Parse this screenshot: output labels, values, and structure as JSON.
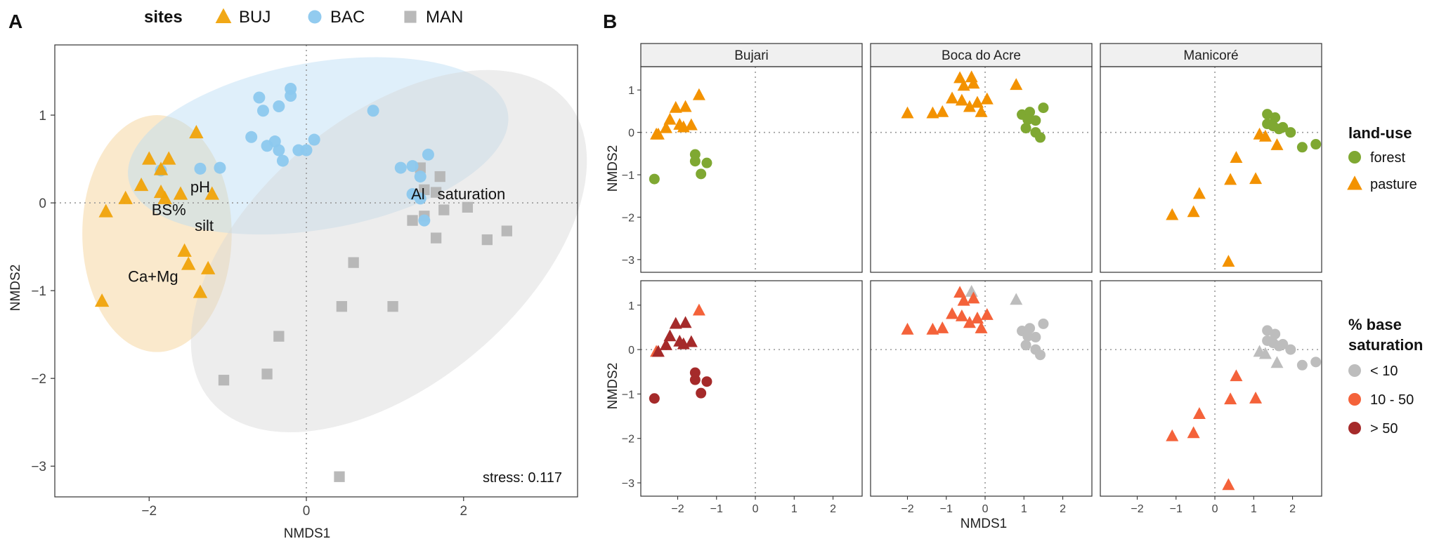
{
  "figure": {
    "panel_a_label": "A",
    "panel_b_label": "B"
  },
  "chart_data": [
    {
      "type": "scatter",
      "id": "panel-a",
      "title": "",
      "xlabel": "NMDS1",
      "ylabel": "NMDS2",
      "xlim": [
        -3.2,
        3.45
      ],
      "ylim": [
        -3.35,
        1.8
      ],
      "xticks": [
        -2,
        0,
        2
      ],
      "yticks": [
        -3,
        -2,
        -1,
        0,
        1
      ],
      "reference_lines": {
        "x": 0,
        "y": 0
      },
      "annotation_stress": "stress: 0.117",
      "legend": {
        "title": "sites",
        "placement": "top",
        "entries": [
          {
            "key": "BUJ",
            "label": "BUJ",
            "shape": "triangle",
            "color": "#f0a30a"
          },
          {
            "key": "BAC",
            "label": "BAC",
            "shape": "circle",
            "color": "#8cc8ee"
          },
          {
            "key": "MAN",
            "label": "MAN",
            "shape": "square",
            "color": "#b5b5b5"
          }
        ]
      },
      "ellipses": [
        {
          "group": "BUJ",
          "cx": -1.9,
          "cy": -0.35,
          "rx": 0.95,
          "ry": 1.35,
          "angle_deg": 0,
          "color": "#f5cf8f"
        },
        {
          "group": "BAC",
          "cx": 0.15,
          "cy": 0.65,
          "rx": 2.45,
          "ry": 0.95,
          "angle_deg": -10,
          "color": "#b7dbf3"
        },
        {
          "group": "MAN",
          "cx": 1.05,
          "cy": -0.55,
          "rx": 1.7,
          "ry": 2.65,
          "angle_deg": 50,
          "color": "#d6d6d6"
        }
      ],
      "vector_labels": [
        {
          "text": "pH",
          "x": -1.35,
          "y": 0.12
        },
        {
          "text": "BS%",
          "x": -1.75,
          "y": -0.14
        },
        {
          "text": "silt",
          "x": -1.3,
          "y": -0.32
        },
        {
          "text": "Ca+Mg",
          "x": -1.95,
          "y": -0.9
        },
        {
          "text": "Al",
          "x": 1.42,
          "y": 0.04
        },
        {
          "text": "saturation",
          "x": 2.1,
          "y": 0.04
        }
      ],
      "series": [
        {
          "name": "BUJ",
          "shape": "triangle",
          "color": "#f0a30a",
          "x": [
            -2.55,
            -2.3,
            -2.1,
            -2.0,
            -1.85,
            -1.8,
            -1.75,
            -1.6,
            -1.4,
            -1.55,
            -1.5,
            -1.35,
            -1.25,
            -1.2,
            -2.6,
            -1.85
          ],
          "y": [
            -0.1,
            0.05,
            0.2,
            0.5,
            0.12,
            0.05,
            0.5,
            0.1,
            0.8,
            -0.55,
            -0.7,
            -1.02,
            -0.75,
            0.1,
            -1.12,
            0.38
          ]
        },
        {
          "name": "BAC",
          "shape": "circle",
          "color": "#8cc8ee",
          "x": [
            -0.6,
            -0.35,
            -0.55,
            -0.4,
            -0.2,
            -0.2,
            -0.1,
            -0.7,
            -0.5,
            -0.35,
            -0.3,
            0.0,
            0.1,
            0.85,
            1.2,
            1.35,
            1.45,
            1.55,
            1.35,
            1.45,
            1.5,
            -1.85,
            -1.35,
            -1.1
          ],
          "y": [
            1.2,
            1.1,
            1.05,
            0.7,
            1.3,
            1.22,
            0.6,
            0.75,
            0.65,
            0.6,
            0.48,
            0.6,
            0.72,
            1.05,
            0.4,
            0.42,
            0.3,
            0.55,
            0.1,
            0.05,
            -0.2,
            0.37,
            0.39,
            0.4
          ]
        },
        {
          "name": "MAN",
          "shape": "square",
          "color": "#b5b5b5",
          "x": [
            1.45,
            1.7,
            1.5,
            1.65,
            1.75,
            2.05,
            1.35,
            1.5,
            1.65,
            2.3,
            2.55,
            0.6,
            0.45,
            1.1,
            -0.35,
            -0.5,
            -1.05,
            0.42
          ],
          "y": [
            0.4,
            0.3,
            0.15,
            0.12,
            -0.08,
            -0.05,
            -0.2,
            -0.15,
            -0.4,
            -0.42,
            -0.32,
            -0.68,
            -1.18,
            -1.18,
            -1.52,
            -1.95,
            -2.02,
            -3.12
          ]
        }
      ]
    },
    {
      "type": "scatter",
      "id": "panel-b",
      "xlabel": "NMDS1",
      "ylabel": "NMDS2",
      "xlim": [
        -2.95,
        2.75
      ],
      "ylim": [
        -3.3,
        1.55
      ],
      "xticks": [
        -2,
        -1,
        0,
        1,
        2
      ],
      "yticks": [
        -3,
        -2,
        -1,
        0,
        1
      ],
      "facets": [
        "Bujari",
        "Boca do Acre",
        "Manicoré"
      ],
      "rows": [
        {
          "name": "land-use",
          "legend_title": "land-use",
          "categories": [
            {
              "key": "forest",
              "label": "forest",
              "shape": "circle",
              "color": "#7fa832"
            },
            {
              "key": "pasture",
              "label": "pasture",
              "shape": "triangle",
              "color": "#f39200"
            }
          ]
        },
        {
          "name": "base-saturation",
          "legend_title_lines": [
            "% base",
            "saturation"
          ],
          "categories": [
            {
              "key": "low",
              "label": "< 10",
              "shape": "circle",
              "color": "#bdbdbd"
            },
            {
              "key": "mid",
              "label": "10 - 50",
              "shape": "circle",
              "color": "#f4623a"
            },
            {
              "key": "high",
              "label": "> 50",
              "shape": "circle",
              "color": "#a52a2a"
            }
          ]
        }
      ],
      "points": {
        "Bujari": [
          {
            "x": -2.55,
            "y": -0.05,
            "land": "pasture",
            "bs": "mid"
          },
          {
            "x": -2.5,
            "y": -0.05,
            "land": "pasture",
            "bs": "high"
          },
          {
            "x": -2.3,
            "y": 0.1,
            "land": "pasture",
            "bs": "high"
          },
          {
            "x": -2.2,
            "y": 0.3,
            "land": "pasture",
            "bs": "high"
          },
          {
            "x": -2.05,
            "y": 0.58,
            "land": "pasture",
            "bs": "high"
          },
          {
            "x": -1.95,
            "y": 0.18,
            "land": "pasture",
            "bs": "high"
          },
          {
            "x": -1.85,
            "y": 0.12,
            "land": "pasture",
            "bs": "high"
          },
          {
            "x": -1.8,
            "y": 0.6,
            "land": "pasture",
            "bs": "high"
          },
          {
            "x": -1.65,
            "y": 0.17,
            "land": "pasture",
            "bs": "high"
          },
          {
            "x": -1.45,
            "y": 0.88,
            "land": "pasture",
            "bs": "mid"
          },
          {
            "x": -1.55,
            "y": -0.52,
            "land": "forest",
            "bs": "high"
          },
          {
            "x": -1.55,
            "y": -0.68,
            "land": "forest",
            "bs": "high"
          },
          {
            "x": -1.25,
            "y": -0.72,
            "land": "forest",
            "bs": "high"
          },
          {
            "x": -1.4,
            "y": -0.98,
            "land": "forest",
            "bs": "high"
          },
          {
            "x": -2.6,
            "y": -1.1,
            "land": "forest",
            "bs": "high"
          }
        ],
        "Boca do Acre": [
          {
            "x": -0.65,
            "y": 1.28,
            "land": "pasture",
            "bs": "mid"
          },
          {
            "x": -0.35,
            "y": 1.3,
            "land": "pasture",
            "bs": "low"
          },
          {
            "x": -0.55,
            "y": 1.1,
            "land": "pasture",
            "bs": "mid"
          },
          {
            "x": -0.3,
            "y": 1.15,
            "land": "pasture",
            "bs": "mid"
          },
          {
            "x": -0.85,
            "y": 0.8,
            "land": "pasture",
            "bs": "mid"
          },
          {
            "x": -0.6,
            "y": 0.75,
            "land": "pasture",
            "bs": "mid"
          },
          {
            "x": -0.4,
            "y": 0.6,
            "land": "pasture",
            "bs": "mid"
          },
          {
            "x": -0.2,
            "y": 0.7,
            "land": "pasture",
            "bs": "mid"
          },
          {
            "x": 0.05,
            "y": 0.78,
            "land": "pasture",
            "bs": "mid"
          },
          {
            "x": -0.1,
            "y": 0.48,
            "land": "pasture",
            "bs": "mid"
          },
          {
            "x": -1.35,
            "y": 0.45,
            "land": "pasture",
            "bs": "mid"
          },
          {
            "x": -1.1,
            "y": 0.48,
            "land": "pasture",
            "bs": "mid"
          },
          {
            "x": -2.0,
            "y": 0.45,
            "land": "pasture",
            "bs": "mid"
          },
          {
            "x": 0.8,
            "y": 1.12,
            "land": "pasture",
            "bs": "low"
          },
          {
            "x": 0.95,
            "y": 0.42,
            "land": "forest",
            "bs": "low"
          },
          {
            "x": 1.15,
            "y": 0.48,
            "land": "forest",
            "bs": "low"
          },
          {
            "x": 1.5,
            "y": 0.58,
            "land": "forest",
            "bs": "low"
          },
          {
            "x": 1.1,
            "y": 0.3,
            "land": "forest",
            "bs": "low"
          },
          {
            "x": 1.3,
            "y": 0.28,
            "land": "forest",
            "bs": "low"
          },
          {
            "x": 1.05,
            "y": 0.1,
            "land": "forest",
            "bs": "low"
          },
          {
            "x": 1.3,
            "y": 0.0,
            "land": "forest",
            "bs": "low"
          },
          {
            "x": 1.42,
            "y": -0.12,
            "land": "forest",
            "bs": "low"
          }
        ],
        "Manicoré": [
          {
            "x": 1.35,
            "y": 0.43,
            "land": "forest",
            "bs": "low"
          },
          {
            "x": 1.55,
            "y": 0.35,
            "land": "forest",
            "bs": "low"
          },
          {
            "x": 1.35,
            "y": 0.2,
            "land": "forest",
            "bs": "low"
          },
          {
            "x": 1.5,
            "y": 0.15,
            "land": "forest",
            "bs": "low"
          },
          {
            "x": 1.65,
            "y": 0.08,
            "land": "forest",
            "bs": "low"
          },
          {
            "x": 1.75,
            "y": 0.12,
            "land": "forest",
            "bs": "low"
          },
          {
            "x": 1.95,
            "y": 0.0,
            "land": "forest",
            "bs": "low"
          },
          {
            "x": 2.25,
            "y": -0.35,
            "land": "forest",
            "bs": "low"
          },
          {
            "x": 2.6,
            "y": -0.28,
            "land": "forest",
            "bs": "low"
          },
          {
            "x": 1.15,
            "y": -0.05,
            "land": "pasture",
            "bs": "low"
          },
          {
            "x": 1.3,
            "y": -0.1,
            "land": "pasture",
            "bs": "low"
          },
          {
            "x": 1.6,
            "y": -0.3,
            "land": "pasture",
            "bs": "low"
          },
          {
            "x": 0.55,
            "y": -0.6,
            "land": "pasture",
            "bs": "mid"
          },
          {
            "x": 0.4,
            "y": -1.12,
            "land": "pasture",
            "bs": "mid"
          },
          {
            "x": 1.05,
            "y": -1.1,
            "land": "pasture",
            "bs": "mid"
          },
          {
            "x": -0.4,
            "y": -1.45,
            "land": "pasture",
            "bs": "mid"
          },
          {
            "x": -0.55,
            "y": -1.88,
            "land": "pasture",
            "bs": "mid"
          },
          {
            "x": -1.1,
            "y": -1.95,
            "land": "pasture",
            "bs": "mid"
          },
          {
            "x": 0.35,
            "y": -3.05,
            "land": "pasture",
            "bs": "mid"
          }
        ]
      }
    }
  ]
}
